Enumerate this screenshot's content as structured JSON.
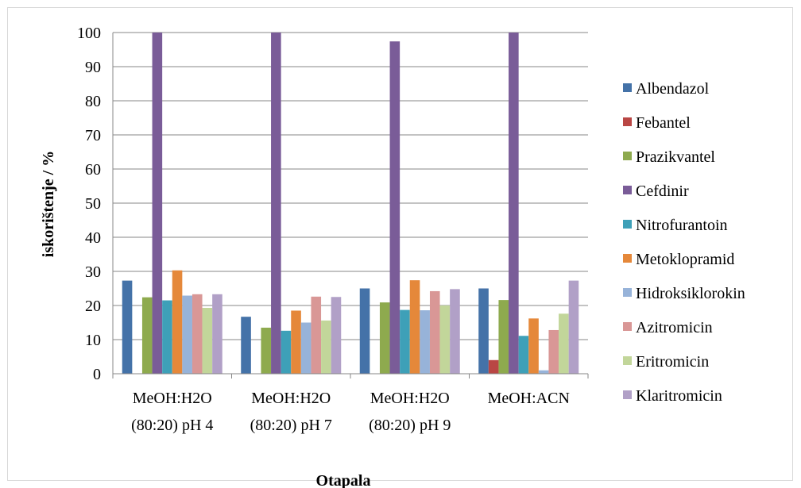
{
  "chart_data": {
    "type": "bar",
    "categories": [
      [
        "MeOH:H2O",
        "(80:20) pH 4"
      ],
      [
        "MeOH:H2O",
        "(80:20) pH 7"
      ],
      [
        "MeOH:H2O",
        "(80:20) pH 9"
      ],
      [
        "MeOH:ACN"
      ]
    ],
    "xlabel": "Otapala",
    "ylabel": "iskorištenje / %",
    "ylim": [
      0,
      100
    ],
    "yticks": [
      0,
      10,
      20,
      30,
      40,
      50,
      60,
      70,
      80,
      90,
      100
    ],
    "grid": true,
    "legend_position": "right",
    "series": [
      {
        "name": "Albendazol",
        "color": "#4472a8",
        "values": [
          27.3,
          16.7,
          25.0,
          25.0
        ]
      },
      {
        "name": "Febantel",
        "color": "#b94644",
        "values": [
          0,
          0,
          0,
          4.0
        ]
      },
      {
        "name": "Prazikvantel",
        "color": "#8eaa4e",
        "values": [
          22.4,
          13.5,
          20.9,
          21.6
        ]
      },
      {
        "name": "Cefdinir",
        "color": "#7a5c98",
        "values": [
          100,
          100,
          97.4,
          100
        ]
      },
      {
        "name": "Nitrofurantoin",
        "color": "#3ea0b8",
        "values": [
          21.5,
          12.6,
          18.7,
          11.1
        ]
      },
      {
        "name": "Metoklopramid",
        "color": "#e5883a",
        "values": [
          30.3,
          18.5,
          27.4,
          16.2
        ]
      },
      {
        "name": "Hidroksiklorokin",
        "color": "#97b3d9",
        "values": [
          22.9,
          15.0,
          18.6,
          1.0
        ]
      },
      {
        "name": "Azitromicin",
        "color": "#d99796",
        "values": [
          23.3,
          22.6,
          24.2,
          12.8
        ]
      },
      {
        "name": "Eritromicin",
        "color": "#c2d69a",
        "values": [
          19.3,
          15.6,
          20.0,
          17.6
        ]
      },
      {
        "name": "Klaritromicin",
        "color": "#b1a0c7",
        "values": [
          23.3,
          22.5,
          24.8,
          27.3
        ]
      }
    ]
  }
}
